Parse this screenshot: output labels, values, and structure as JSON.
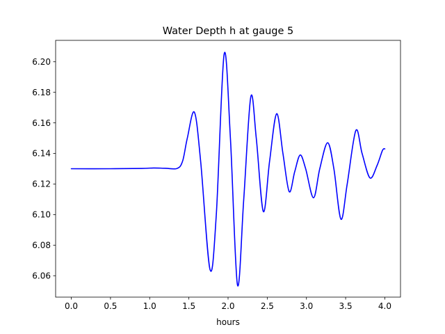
{
  "chart_data": {
    "type": "line",
    "title": "Water Depth h at gauge 5",
    "xlabel": "hours",
    "ylabel": "",
    "xlim": [
      -0.2,
      4.2
    ],
    "ylim": [
      6.046,
      6.214
    ],
    "xticks": [
      0.0,
      0.5,
      1.0,
      1.5,
      2.0,
      2.5,
      3.0,
      3.5,
      4.0
    ],
    "xtick_labels": [
      "0.0",
      "0.5",
      "1.0",
      "1.5",
      "2.0",
      "2.5",
      "3.0",
      "3.5",
      "4.0"
    ],
    "yticks": [
      6.06,
      6.08,
      6.1,
      6.12,
      6.14,
      6.16,
      6.18,
      6.2
    ],
    "ytick_labels": [
      "6.06",
      "6.08",
      "6.10",
      "6.12",
      "6.14",
      "6.16",
      "6.18",
      "6.20"
    ],
    "grid": false,
    "line_color": "#0000ff",
    "series": [
      {
        "x": [
          0.0,
          0.5,
          0.9,
          1.05,
          1.2,
          1.35,
          1.42,
          1.48,
          1.57,
          1.65,
          1.77,
          1.85,
          1.95,
          2.03,
          2.12,
          2.2,
          2.29,
          2.36,
          2.45,
          2.53,
          2.62,
          2.7,
          2.78,
          2.85,
          2.92,
          2.99,
          3.09,
          3.17,
          3.27,
          3.35,
          3.44,
          3.52,
          3.63,
          3.71,
          3.81,
          3.9,
          3.97,
          4.0
        ],
        "y": [
          6.13,
          6.13,
          6.1302,
          6.1305,
          6.1303,
          6.1302,
          6.135,
          6.15,
          6.167,
          6.135,
          6.064,
          6.1,
          6.205,
          6.15,
          6.054,
          6.11,
          6.177,
          6.15,
          6.102,
          6.135,
          6.166,
          6.14,
          6.115,
          6.128,
          6.139,
          6.13,
          6.111,
          6.13,
          6.147,
          6.13,
          6.097,
          6.12,
          6.155,
          6.14,
          6.124,
          6.132,
          6.142,
          6.143
        ]
      }
    ]
  }
}
